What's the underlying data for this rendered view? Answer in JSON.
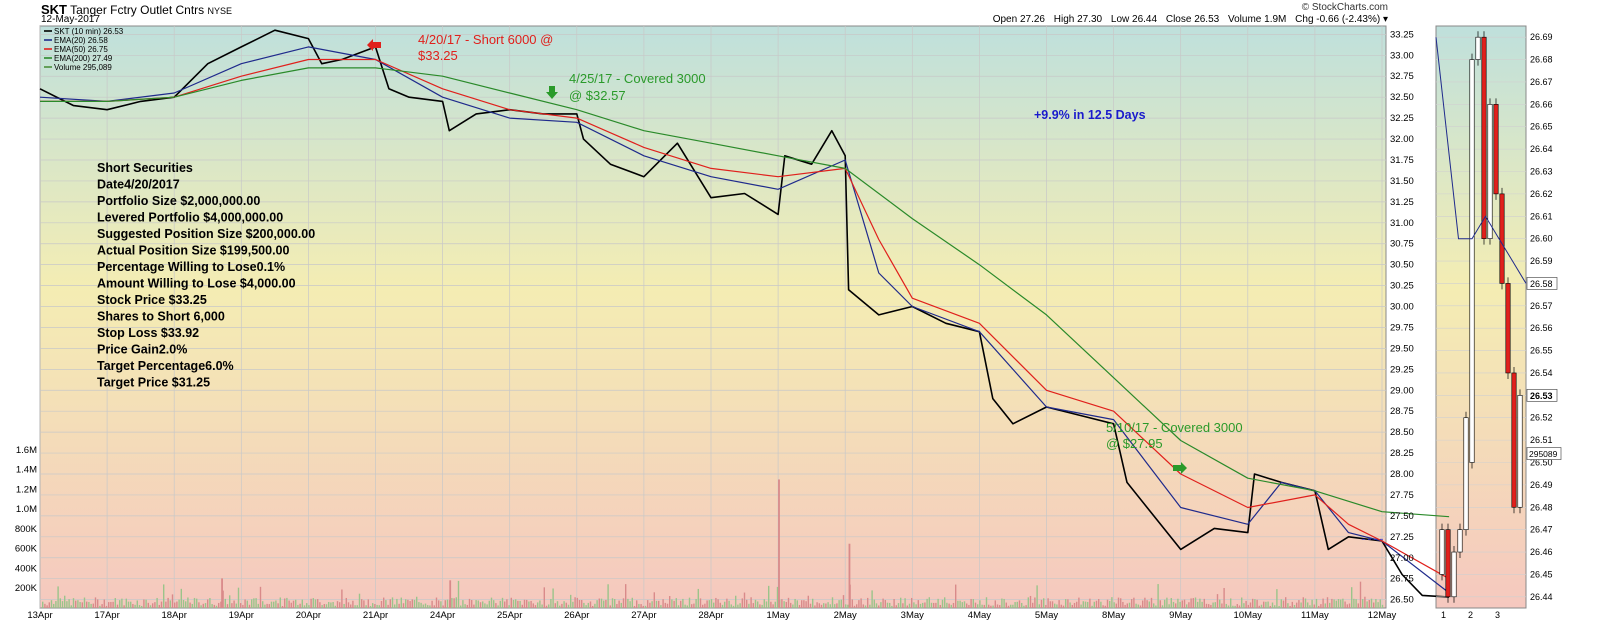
{
  "header": {
    "symbol": "SKT",
    "name": "Tanger Fctry Outlet Cntrs",
    "exchange": "NYSE",
    "date": "12-May-2017",
    "source": "© StockCharts.com",
    "open": "Open 27.26",
    "high": "High 27.30",
    "low": "Low 26.44",
    "close": "Close 26.53",
    "volume": "Volume 1.9M",
    "chg": "Chg -0.66 (-2.43%) ▾"
  },
  "legend": [
    {
      "label": "SKT (10 min) 26.53",
      "color": "#000000"
    },
    {
      "label": "EMA(20) 26.58",
      "color": "#1f2a8c"
    },
    {
      "label": "EMA(50) 26.75",
      "color": "#e0201c"
    },
    {
      "label": "EMA(200) 27.49",
      "color": "#2a8a2a"
    },
    {
      "label": "Volume 295,089",
      "color": "#4b8f3b"
    }
  ],
  "notes": {
    "lines": [
      "Short Securities",
      "Date4/20/2017",
      "Portfolio Size $2,000,000.00",
      "Levered Portfolio $4,000,000.00",
      "Suggested Position Size $200,000.00",
      "Actual Position Size $199,500.00",
      "Percentage Willing to Lose0.1%",
      "Amount Willing to Lose $4,000.00",
      "Stock Price $33.25",
      "Shares to Short 6,000",
      "Stop Loss $33.92",
      "Price Gain2.0%",
      "Target Percentage6.0%",
      "Target Price $31.25"
    ]
  },
  "annotations": {
    "short": [
      "4/20/17 - Short 6000 @",
      "$33.25"
    ],
    "cover1": [
      "4/25/17 - Covered 3000",
      "@ $32.57"
    ],
    "cover2": [
      "5/10/17 - Covered 3000",
      "@ $27.95"
    ],
    "gain": "+9.9% in 12.5 Days",
    "short_color": "#e0201c",
    "cover_color": "#2a9a2a",
    "gain_color": "#1a1acc"
  },
  "chart_data": {
    "type": "line",
    "title": "SKT (10 min)",
    "x_tick_labels": [
      "13Apr",
      "17Apr",
      "18Apr",
      "19Apr",
      "20Apr",
      "21Apr",
      "24Apr",
      "25Apr",
      "26Apr",
      "27Apr",
      "28Apr",
      "1May",
      "2May",
      "3May",
      "4May",
      "5May",
      "8May",
      "9May",
      "10May",
      "11May",
      "12May"
    ],
    "price_ticks": [
      "33.25",
      "33.00",
      "32.75",
      "32.50",
      "32.25",
      "32.00",
      "31.75",
      "31.50",
      "31.25",
      "31.00",
      "30.75",
      "30.50",
      "30.25",
      "30.00",
      "29.75",
      "29.50",
      "29.25",
      "29.00",
      "28.75",
      "28.50",
      "28.25",
      "28.00",
      "27.75",
      "27.50",
      "27.25",
      "27.00",
      "26.75",
      "26.50"
    ],
    "ylim": [
      26.4,
      33.35
    ],
    "volume_ticks": [
      "1.6M",
      "1.4M",
      "1.2M",
      "1.0M",
      "800K",
      "600K",
      "400K",
      "200K"
    ],
    "volume_ylim": [
      0,
      1800000
    ],
    "series": [
      {
        "name": "SKT (10 min)",
        "color": "#000000",
        "points": [
          [
            0,
            32.6
          ],
          [
            0.5,
            32.4
          ],
          [
            1,
            32.35
          ],
          [
            1.5,
            32.45
          ],
          [
            2,
            32.5
          ],
          [
            2.5,
            32.9
          ],
          [
            3,
            33.1
          ],
          [
            3.5,
            33.3
          ],
          [
            4,
            33.2
          ],
          [
            4.2,
            32.9
          ],
          [
            4.5,
            32.95
          ],
          [
            5,
            33.1
          ],
          [
            5.2,
            32.6
          ],
          [
            5.5,
            32.5
          ],
          [
            6,
            32.45
          ],
          [
            6.1,
            32.1
          ],
          [
            6.5,
            32.3
          ],
          [
            7,
            32.35
          ],
          [
            7.5,
            32.3
          ],
          [
            8,
            32.3
          ],
          [
            8.1,
            32.0
          ],
          [
            8.5,
            31.7
          ],
          [
            9,
            31.55
          ],
          [
            9.5,
            31.95
          ],
          [
            10,
            31.3
          ],
          [
            10.5,
            31.35
          ],
          [
            11,
            31.1
          ],
          [
            11.1,
            31.8
          ],
          [
            11.5,
            31.7
          ],
          [
            11.8,
            32.1
          ],
          [
            12,
            31.8
          ],
          [
            12.05,
            30.2
          ],
          [
            12.5,
            29.9
          ],
          [
            13,
            30.0
          ],
          [
            13.5,
            29.8
          ],
          [
            14,
            29.7
          ],
          [
            14.2,
            28.9
          ],
          [
            14.5,
            28.6
          ],
          [
            15,
            28.8
          ],
          [
            15.5,
            28.7
          ],
          [
            16,
            28.6
          ],
          [
            16.2,
            27.9
          ],
          [
            16.5,
            27.6
          ],
          [
            17,
            27.1
          ],
          [
            17.5,
            27.35
          ],
          [
            18,
            27.3
          ],
          [
            18.1,
            28.0
          ],
          [
            18.5,
            27.9
          ],
          [
            19,
            27.8
          ],
          [
            19.2,
            27.1
          ],
          [
            19.5,
            27.25
          ],
          [
            20,
            27.2
          ],
          [
            20.3,
            26.8
          ],
          [
            20.6,
            26.55
          ],
          [
            21,
            26.53
          ]
        ]
      },
      {
        "name": "EMA(20)",
        "color": "#1f2a8c",
        "points": [
          [
            0,
            32.5
          ],
          [
            1,
            32.45
          ],
          [
            2,
            32.55
          ],
          [
            3,
            32.9
          ],
          [
            4,
            33.1
          ],
          [
            5,
            32.95
          ],
          [
            6,
            32.5
          ],
          [
            7,
            32.25
          ],
          [
            8,
            32.2
          ],
          [
            9,
            31.8
          ],
          [
            10,
            31.55
          ],
          [
            11,
            31.4
          ],
          [
            12,
            31.75
          ],
          [
            12.5,
            30.4
          ],
          [
            13,
            30.0
          ],
          [
            14,
            29.7
          ],
          [
            15,
            28.8
          ],
          [
            16,
            28.65
          ],
          [
            17,
            27.6
          ],
          [
            18,
            27.4
          ],
          [
            18.5,
            27.9
          ],
          [
            19,
            27.8
          ],
          [
            19.5,
            27.3
          ],
          [
            20,
            27.2
          ],
          [
            21,
            26.58
          ]
        ]
      },
      {
        "name": "EMA(50)",
        "color": "#e0201c",
        "points": [
          [
            0,
            32.45
          ],
          [
            1,
            32.45
          ],
          [
            2,
            32.5
          ],
          [
            3,
            32.75
          ],
          [
            4,
            32.95
          ],
          [
            5,
            32.95
          ],
          [
            6,
            32.6
          ],
          [
            7,
            32.35
          ],
          [
            8,
            32.25
          ],
          [
            9,
            31.9
          ],
          [
            10,
            31.65
          ],
          [
            11,
            31.55
          ],
          [
            12,
            31.65
          ],
          [
            12.5,
            30.8
          ],
          [
            13,
            30.1
          ],
          [
            14,
            29.8
          ],
          [
            15,
            29.0
          ],
          [
            16,
            28.75
          ],
          [
            17,
            28.0
          ],
          [
            18,
            27.6
          ],
          [
            19,
            27.75
          ],
          [
            19.5,
            27.4
          ],
          [
            20,
            27.2
          ],
          [
            21,
            26.75
          ]
        ]
      },
      {
        "name": "EMA(200)",
        "color": "#2a8a2a",
        "points": [
          [
            0,
            32.45
          ],
          [
            1,
            32.45
          ],
          [
            2,
            32.5
          ],
          [
            3,
            32.7
          ],
          [
            4,
            32.85
          ],
          [
            5,
            32.85
          ],
          [
            6,
            32.75
          ],
          [
            7,
            32.55
          ],
          [
            8,
            32.35
          ],
          [
            9,
            32.1
          ],
          [
            10,
            31.95
          ],
          [
            11,
            31.8
          ],
          [
            12,
            31.65
          ],
          [
            13,
            31.05
          ],
          [
            14,
            30.5
          ],
          [
            15,
            29.9
          ],
          [
            16,
            29.15
          ],
          [
            17,
            28.4
          ],
          [
            18,
            27.95
          ],
          [
            19,
            27.8
          ],
          [
            20,
            27.55
          ],
          [
            21,
            27.49
          ]
        ]
      }
    ],
    "volume_spikes": [
      [
        11,
        1300000
      ],
      [
        12.05,
        650000
      ],
      [
        2.7,
        300000
      ],
      [
        6.1,
        280000
      ]
    ]
  },
  "right_panel": {
    "ticks": [
      "26.69",
      "26.68",
      "26.67",
      "26.66",
      "26.65",
      "26.64",
      "26.63",
      "26.62",
      "26.61",
      "26.60",
      "26.59",
      "26.58",
      "26.57",
      "26.56",
      "26.55",
      "26.54",
      "26.53",
      "26.52",
      "26.51",
      "26.50",
      "26.49",
      "26.48",
      "26.47",
      "26.46",
      "26.45",
      "26.44"
    ],
    "ylim": [
      26.435,
      26.695
    ],
    "x_labels": [
      "1",
      "2",
      "3"
    ],
    "ema_tag": "26.58",
    "last_tag": "26.53",
    "volume_tag": "295089",
    "candles": [
      [
        26.45,
        26.47
      ],
      [
        26.47,
        26.44
      ],
      [
        26.44,
        26.46
      ],
      [
        26.46,
        26.47
      ],
      [
        26.47,
        26.52
      ],
      [
        26.5,
        26.68
      ],
      [
        26.68,
        26.69
      ],
      [
        26.69,
        26.6
      ],
      [
        26.6,
        26.66
      ],
      [
        26.66,
        26.62
      ],
      [
        26.62,
        26.58
      ],
      [
        26.58,
        26.54
      ],
      [
        26.54,
        26.48
      ],
      [
        26.48,
        26.53
      ]
    ]
  }
}
